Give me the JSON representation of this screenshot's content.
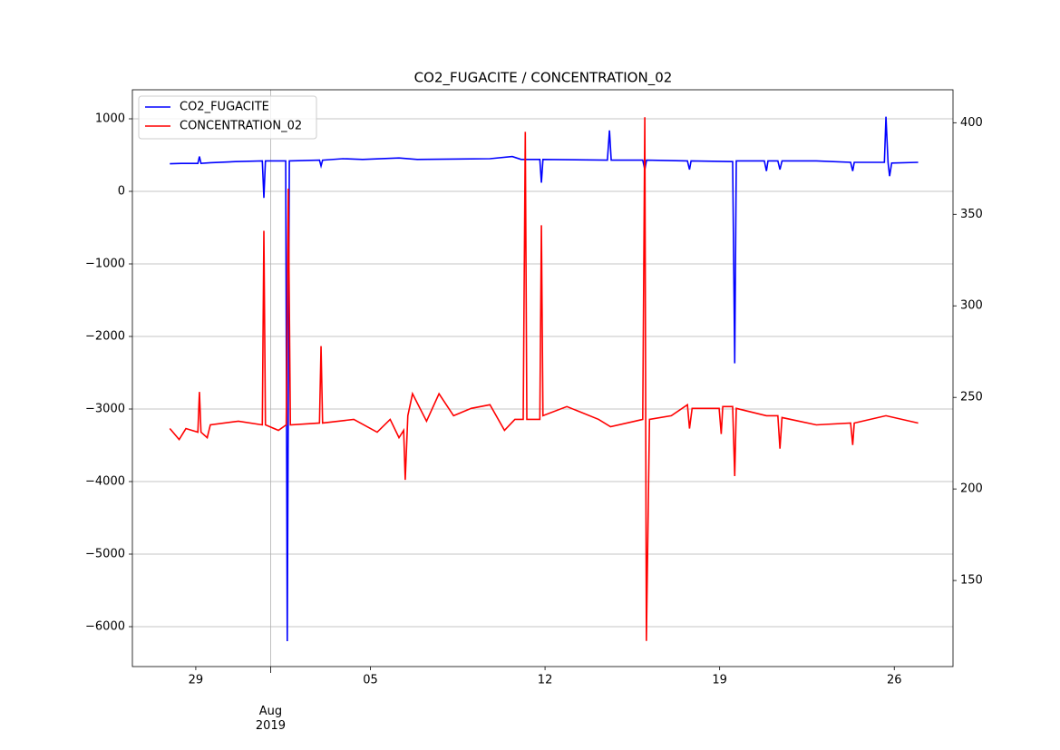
{
  "chart_data": {
    "type": "line",
    "title": "CO2_FUGACITE / CONCENTRATION_02",
    "xlim": [
      "2019-07-26T11:00",
      "2019-08-28T08:30"
    ],
    "xticks": [
      {
        "value": "2019-07-29",
        "label": "29"
      },
      {
        "value": "2019-08-01",
        "label": "Aug\n2019"
      },
      {
        "value": "2019-08-05",
        "label": "05"
      },
      {
        "value": "2019-08-12",
        "label": "12"
      },
      {
        "value": "2019-08-19",
        "label": "19"
      },
      {
        "value": "2019-08-26",
        "label": "26"
      }
    ],
    "ylim": [
      -6550,
      1400
    ],
    "yticks": [
      {
        "value": -6000,
        "label": "−6000"
      },
      {
        "value": -5000,
        "label": "−5000"
      },
      {
        "value": -4000,
        "label": "−4000"
      },
      {
        "value": -3000,
        "label": "−3000"
      },
      {
        "value": -2000,
        "label": "−2000"
      },
      {
        "value": -1000,
        "label": "−1000"
      },
      0,
      1000
    ],
    "y2lim": [
      103,
      418
    ],
    "y2ticks": [
      150,
      200,
      250,
      300,
      350,
      400
    ],
    "grid": true,
    "legend": "upper left",
    "series": [
      {
        "name": "CO2_FUGACITE",
        "color": "#0000ff",
        "axis": "y",
        "x": [
          "2019-07-27T23:00",
          "2019-07-28T10:00",
          "2019-07-29T02:00",
          "2019-07-29T03:30",
          "2019-07-29T05:00",
          "2019-07-29T14:00",
          "2019-07-30T14:00",
          "2019-07-31T16:00",
          "2019-07-31T17:30",
          "2019-07-31T19:00",
          "2019-08-01T14:30",
          "2019-08-01T16:00",
          "2019-08-01T18:00",
          "2019-08-02T23:00",
          "2019-08-03T00:30",
          "2019-08-03T02:00",
          "2019-08-03T21:30",
          "2019-08-04T16:30",
          "2019-08-06T03:30",
          "2019-08-06T21:00",
          "2019-08-09T19:00",
          "2019-08-10T16:30",
          "2019-08-11T01:00",
          "2019-08-11T19:00",
          "2019-08-11T20:30",
          "2019-08-11T22:00",
          "2019-08-14T12:00",
          "2019-08-14T14:00",
          "2019-08-14T15:40",
          "2019-08-15T22:00",
          "2019-08-16T00:00",
          "2019-08-16T01:40",
          "2019-08-17T17:00",
          "2019-08-17T19:00",
          "2019-08-17T20:30",
          "2019-08-19T12:30",
          "2019-08-19T14:30",
          "2019-08-19T16:00",
          "2019-08-20T19:00",
          "2019-08-20T21:00",
          "2019-08-20T22:30",
          "2019-08-21T08:00",
          "2019-08-21T10:00",
          "2019-08-21T12:00",
          "2019-08-22T21:00",
          "2019-08-24T06:00",
          "2019-08-24T08:00",
          "2019-08-24T09:30",
          "2019-08-25T14:30",
          "2019-08-25T16:00",
          "2019-08-25T18:00",
          "2019-08-25T19:30",
          "2019-08-25T21:30",
          "2019-08-26T23:00"
        ],
        "values": [
          380,
          385,
          385,
          480,
          385,
          395,
          410,
          420,
          -90,
          420,
          420,
          -6200,
          420,
          430,
          350,
          430,
          450,
          440,
          460,
          440,
          450,
          480,
          440,
          440,
          120,
          440,
          430,
          840,
          430,
          430,
          300,
          430,
          420,
          300,
          420,
          410,
          -2370,
          420,
          420,
          280,
          420,
          420,
          300,
          420,
          420,
          400,
          280,
          400,
          400,
          1030,
          400,
          210,
          390,
          400
        ]
      },
      {
        "name": "CONCENTRATION_02",
        "color": "#ff0000",
        "axis": "y2",
        "x": [
          "2019-07-27T23:00",
          "2019-07-28T08:00",
          "2019-07-28T14:30",
          "2019-07-29T02:00",
          "2019-07-29T03:30",
          "2019-07-29T05:00",
          "2019-07-29T11:00",
          "2019-07-29T14:00",
          "2019-07-30T17:00",
          "2019-07-31T16:00",
          "2019-07-31T17:30",
          "2019-07-31T19:00",
          "2019-08-01T07:30",
          "2019-08-01T15:00",
          "2019-08-01T17:00",
          "2019-08-01T19:00",
          "2019-08-02T23:00",
          "2019-08-03T00:30",
          "2019-08-03T02:00",
          "2019-08-04T08:00",
          "2019-08-05T06:30",
          "2019-08-05T19:00",
          "2019-08-06T03:30",
          "2019-08-06T08:00",
          "2019-08-06T09:30",
          "2019-08-06T12:00",
          "2019-08-06T16:30",
          "2019-08-07T06:00",
          "2019-08-07T18:00",
          "2019-08-08T08:00",
          "2019-08-09T01:00",
          "2019-08-09T19:00",
          "2019-08-10T09:00",
          "2019-08-10T19:00",
          "2019-08-11T03:00",
          "2019-08-11T05:00",
          "2019-08-11T06:30",
          "2019-08-11T19:00",
          "2019-08-11T20:30",
          "2019-08-11T22:00",
          "2019-08-12T21:00",
          "2019-08-14T03:30",
          "2019-08-14T15:00",
          "2019-08-15T14:30",
          "2019-08-15T22:00",
          "2019-08-16T00:00",
          "2019-08-16T01:30",
          "2019-08-16T04:30",
          "2019-08-17T01:30",
          "2019-08-17T17:00",
          "2019-08-17T19:00",
          "2019-08-17T21:30",
          "2019-08-18T23:30",
          "2019-08-19T01:30",
          "2019-08-19T03:00",
          "2019-08-19T12:30",
          "2019-08-19T14:30",
          "2019-08-19T16:00",
          "2019-08-20T21:00",
          "2019-08-21T08:00",
          "2019-08-21T10:00",
          "2019-08-21T12:00",
          "2019-08-22T21:00",
          "2019-08-24T06:00",
          "2019-08-24T08:00",
          "2019-08-24T09:30",
          "2019-08-25T16:00",
          "2019-08-26T23:00"
        ],
        "values": [
          233,
          227,
          233,
          231,
          253,
          231,
          228,
          235,
          237,
          235,
          341,
          235,
          232,
          235,
          364,
          235,
          236,
          278,
          236,
          238,
          231,
          238,
          228,
          232,
          205,
          240,
          252,
          237,
          252,
          240,
          244,
          246,
          232,
          238,
          238,
          395,
          238,
          238,
          344,
          240,
          245,
          238,
          234,
          237,
          238,
          403,
          117,
          238,
          240,
          246,
          233,
          244,
          244,
          230,
          245,
          245,
          207,
          244,
          240,
          240,
          222,
          239,
          235,
          236,
          224,
          236,
          240,
          236
        ]
      }
    ]
  }
}
